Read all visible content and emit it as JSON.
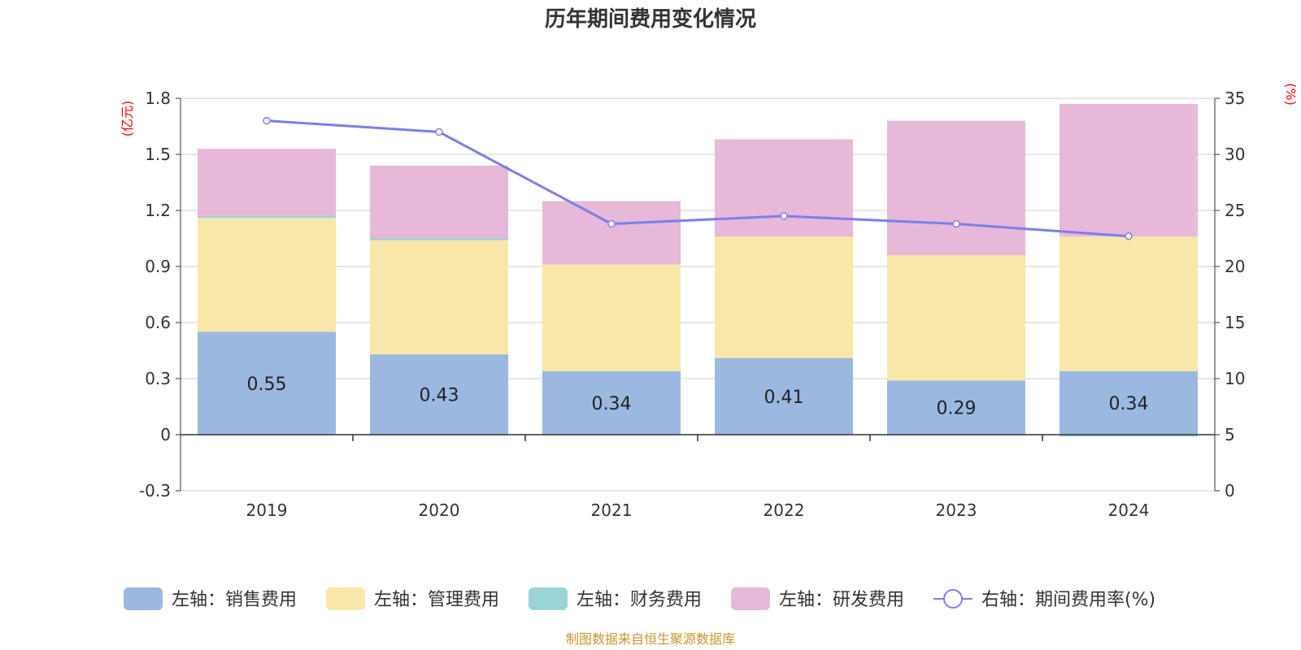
{
  "chart_data": {
    "type": "bar",
    "title": "历年期间费用变化情况",
    "categories": [
      "2019",
      "2020",
      "2021",
      "2022",
      "2023",
      "2024"
    ],
    "series": [
      {
        "name": "左轴：销售费用",
        "axis": "left",
        "color": "#9bb8e1",
        "values": [
          0.55,
          0.43,
          0.34,
          0.41,
          0.29,
          0.34
        ],
        "show_labels": true
      },
      {
        "name": "左轴：管理费用",
        "axis": "left",
        "color": "#f8e7a8",
        "values": [
          0.61,
          0.61,
          0.57,
          0.65,
          0.67,
          0.72
        ],
        "show_labels": false
      },
      {
        "name": "左轴：财务费用",
        "axis": "left",
        "color": "#99d5d6",
        "values": [
          0.01,
          0.01,
          0.0,
          0.0,
          0.0,
          -0.01
        ],
        "show_labels": false
      },
      {
        "name": "左轴：研发费用",
        "axis": "left",
        "color": "#e8b8d8",
        "values": [
          0.36,
          0.39,
          0.34,
          0.52,
          0.72,
          0.71
        ],
        "show_labels": false
      }
    ],
    "line_series": {
      "name": "右轴：期间费用率(%)",
      "axis": "right",
      "color": "#7b7fea",
      "values": [
        33.0,
        32.0,
        23.8,
        24.5,
        23.8,
        22.7
      ]
    },
    "left_axis": {
      "unit": "(亿元)",
      "min": -0.3,
      "max": 1.8,
      "ticks": [
        -0.3,
        0,
        0.3,
        0.6,
        0.9,
        1.2,
        1.5,
        1.8
      ],
      "tick_labels": [
        "-0.3",
        "0",
        "0.3",
        "0.6",
        "0.9",
        "1.2",
        "1.5",
        "1.8"
      ]
    },
    "right_axis": {
      "unit": "(%)",
      "min": 0,
      "max": 35,
      "ticks": [
        0,
        5,
        10,
        15,
        20,
        25,
        30,
        35
      ],
      "tick_labels": [
        "0",
        "5",
        "10",
        "15",
        "20",
        "25",
        "30",
        "35"
      ]
    },
    "grid": true,
    "legend_position": "bottom",
    "source": "制图数据来自恒生聚源数据库"
  }
}
